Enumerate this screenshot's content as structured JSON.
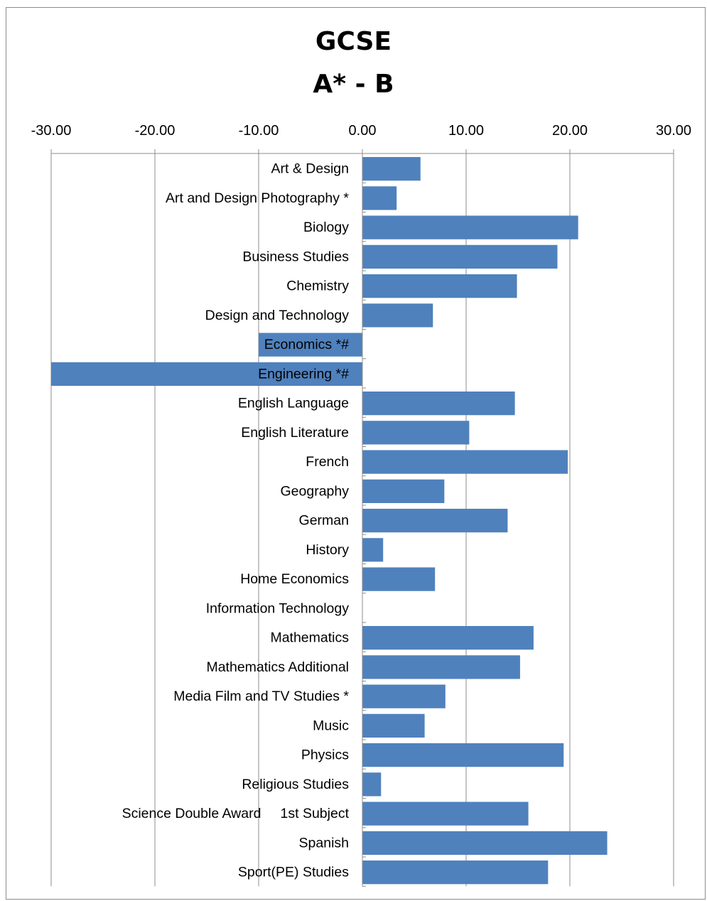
{
  "chart_data": {
    "type": "bar",
    "orientation": "horizontal",
    "title_lines": [
      "GCSE",
      "A* - B"
    ],
    "xlim": [
      -30,
      30
    ],
    "x_ticks": [
      -30,
      -20,
      -10,
      0,
      10,
      20,
      30
    ],
    "x_tick_labels": [
      "-30.00",
      "-20.00",
      "-10.00",
      "0.00",
      "10.00",
      "20.00",
      "30.00"
    ],
    "x_axis_position": "top",
    "grid": "vertical",
    "bar_color": "#4f81bd",
    "categories": [
      "Art & Design",
      "Art and Design Photography *",
      "Biology",
      "Business Studies",
      "Chemistry",
      "Design and Technology",
      "Economics *#",
      "Engineering *#",
      "English Language",
      "English Literature",
      "French",
      "Geography",
      "German",
      "History",
      "Home Economics",
      "Information Technology",
      "Mathematics",
      "Mathematics Additional",
      "Media Film and TV Studies *",
      "Music",
      "Physics",
      "Religious Studies",
      "Science Double Award     1st Subject",
      "Spanish",
      "Sport(PE) Studies"
    ],
    "values": [
      5.6,
      3.3,
      20.8,
      18.8,
      14.9,
      6.8,
      -10.0,
      -30.0,
      14.7,
      10.3,
      19.8,
      7.9,
      14.0,
      2.0,
      7.0,
      0,
      16.5,
      15.2,
      8.0,
      6.0,
      19.4,
      1.8,
      16.0,
      23.6,
      17.9
    ]
  }
}
